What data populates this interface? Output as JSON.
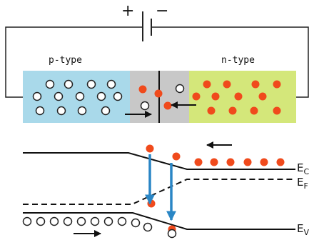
{
  "battery": {
    "plus_symbol": "+",
    "minus_symbol": "−"
  },
  "regions": {
    "p_label": "p-type",
    "n_label": "n-type"
  },
  "bands": {
    "conduction": {
      "letter": "E",
      "subscript": "C"
    },
    "fermi": {
      "letter": "E",
      "subscript": "F"
    },
    "valence": {
      "letter": "E",
      "subscript": "V"
    }
  },
  "colors": {
    "p_region": "#a9d9ea",
    "depletion": "#c8c8c8",
    "n_region": "#d4e77a",
    "electron": "#f04a1c",
    "hole_fill": "#ffffff",
    "recombination_arrow": "#2a86c5",
    "line": "#111111"
  },
  "icons": {
    "hole": "open-circle",
    "electron": "filled-red-circle",
    "drift_arrow": "black-arrow",
    "transition_arrow": "blue-down-arrow"
  }
}
